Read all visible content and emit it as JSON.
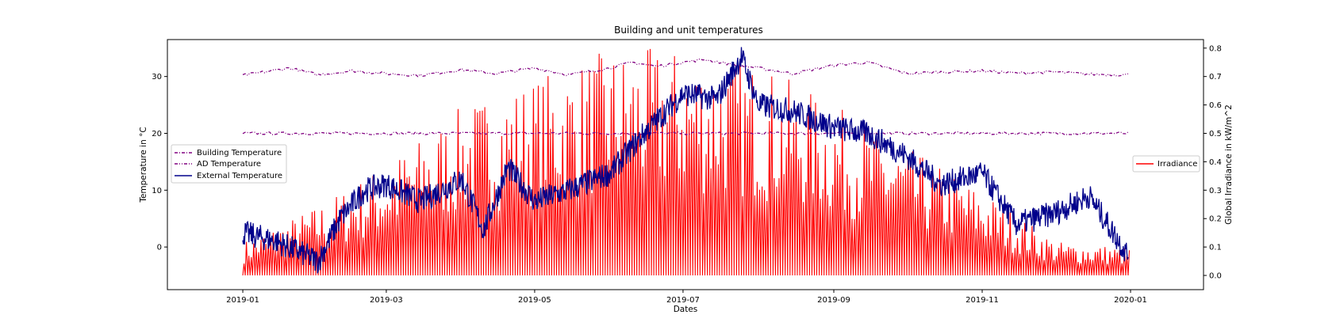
{
  "chart_data": {
    "type": "line",
    "title": "Building and unit temperatures",
    "xlabel": "Dates",
    "ylabel_left": "Temperature in °C",
    "ylabel_right": "Global Irradiance in kW/m^2",
    "x_range": [
      "2018-12-01",
      "2020-01-31"
    ],
    "x_ticks": [
      "2019-01",
      "2019-03",
      "2019-05",
      "2019-07",
      "2019-09",
      "2019-11",
      "2020-01"
    ],
    "ylim_left": [
      -7.5,
      36.5
    ],
    "y_ticks_left": [
      "0",
      "10",
      "20",
      "30"
    ],
    "ylim_right": [
      -0.05,
      0.83
    ],
    "y_ticks_right": [
      "0.0",
      "0.1",
      "0.2",
      "0.3",
      "0.4",
      "0.5",
      "0.6",
      "0.7",
      "0.8"
    ],
    "grid": false,
    "legend_left_placement": "center-left",
    "legend_right_placement": "center-right",
    "series": [
      {
        "name": "Building Temperature",
        "axis": "left",
        "style": "dash-dot",
        "color": "#800080",
        "x": [
          "2019-01-01",
          "2019-02-01",
          "2019-03-01",
          "2019-04-01",
          "2019-05-01",
          "2019-06-01",
          "2019-07-01",
          "2019-08-01",
          "2019-09-01",
          "2019-10-01",
          "2019-11-01",
          "2019-12-01",
          "2019-12-31"
        ],
        "y": [
          20,
          20,
          20,
          20,
          20,
          20,
          20,
          20,
          20,
          20,
          20,
          20,
          20
        ]
      },
      {
        "name": "AD Temperature",
        "axis": "left",
        "style": "dash-dot-dot",
        "color": "#800080",
        "x": [
          "2019-01-01",
          "2019-01-20",
          "2019-02-01",
          "2019-02-15",
          "2019-03-01",
          "2019-03-15",
          "2019-04-01",
          "2019-04-15",
          "2019-05-01",
          "2019-05-15",
          "2019-06-01",
          "2019-06-10",
          "2019-06-20",
          "2019-07-01",
          "2019-07-10",
          "2019-07-20",
          "2019-08-01",
          "2019-08-15",
          "2019-09-01",
          "2019-09-15",
          "2019-10-01",
          "2019-10-15",
          "2019-11-01",
          "2019-11-15",
          "2019-12-01",
          "2019-12-15",
          "2019-12-31"
        ],
        "y": [
          30.2,
          31.5,
          30.3,
          31.0,
          30.5,
          30.2,
          31.2,
          30.5,
          31.5,
          30.3,
          31.5,
          32.5,
          31.8,
          32.5,
          33.0,
          32.2,
          31.5,
          30.5,
          32.0,
          32.5,
          30.5,
          30.8,
          31.0,
          30.6,
          30.8,
          30.4,
          30.3
        ]
      },
      {
        "name": "External Temperature",
        "axis": "left",
        "style": "solid",
        "color": "#00008b",
        "x": [
          "2019-01-01",
          "2019-01-15",
          "2019-02-01",
          "2019-02-10",
          "2019-02-20",
          "2019-03-01",
          "2019-03-15",
          "2019-04-01",
          "2019-04-10",
          "2019-04-20",
          "2019-05-01",
          "2019-05-15",
          "2019-06-01",
          "2019-06-15",
          "2019-07-01",
          "2019-07-15",
          "2019-07-25",
          "2019-08-01",
          "2019-08-15",
          "2019-09-01",
          "2019-09-15",
          "2019-10-01",
          "2019-10-15",
          "2019-11-01",
          "2019-11-15",
          "2019-12-01",
          "2019-12-15",
          "2019-12-31"
        ],
        "y": [
          2.5,
          1.0,
          -2.5,
          5.0,
          10.0,
          11.0,
          8.0,
          12.0,
          3.0,
          14.0,
          8.0,
          10.0,
          13.0,
          20.0,
          27.0,
          26.0,
          33.5,
          25.0,
          24.0,
          21.0,
          20.0,
          16.0,
          11.0,
          13.0,
          4.0,
          6.0,
          9.0,
          -1.5
        ]
      },
      {
        "name": "Irradiance",
        "axis": "right",
        "style": "solid-daily-cycle",
        "color": "#ff0000",
        "x": [
          "2019-01-01",
          "2019-02-01",
          "2019-03-01",
          "2019-04-01",
          "2019-05-01",
          "2019-06-01",
          "2019-07-01",
          "2019-08-01",
          "2019-09-01",
          "2019-10-01",
          "2019-11-01",
          "2019-12-01",
          "2019-12-31"
        ],
        "y": [
          0.12,
          0.25,
          0.4,
          0.6,
          0.7,
          0.8,
          0.8,
          0.75,
          0.6,
          0.45,
          0.3,
          0.12,
          0.1
        ]
      }
    ]
  }
}
